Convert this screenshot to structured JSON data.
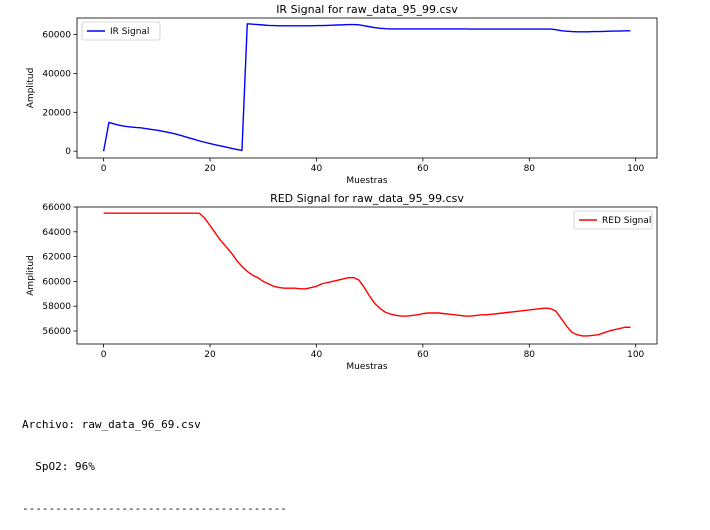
{
  "chart_data": [
    {
      "type": "line",
      "title": "IR Signal for raw_data_95_99.csv",
      "xlabel": "Muestras",
      "ylabel": "Amplitud",
      "xlim": [
        -5,
        104
      ],
      "ylim": [
        -3500,
        68500
      ],
      "xticks": [
        0,
        20,
        40,
        60,
        80,
        100
      ],
      "yticks": [
        0,
        20000,
        40000,
        60000
      ],
      "legend": "top-left",
      "grid": false,
      "series": [
        {
          "name": "IR Signal",
          "color": "#0000ff",
          "x": [
            0,
            1,
            2,
            3,
            4,
            5,
            6,
            7,
            8,
            9,
            10,
            11,
            12,
            13,
            14,
            15,
            16,
            17,
            18,
            19,
            20,
            21,
            22,
            23,
            24,
            25,
            26,
            27,
            28,
            29,
            30,
            31,
            32,
            33,
            34,
            35,
            36,
            37,
            38,
            39,
            40,
            41,
            42,
            43,
            44,
            45,
            46,
            47,
            48,
            49,
            50,
            51,
            52,
            53,
            54,
            55,
            56,
            57,
            58,
            59,
            60,
            61,
            62,
            63,
            64,
            65,
            66,
            67,
            68,
            69,
            70,
            71,
            72,
            73,
            74,
            75,
            76,
            77,
            78,
            79,
            80,
            81,
            82,
            83,
            84,
            85,
            86,
            87,
            88,
            89,
            90,
            91,
            92,
            93,
            94,
            95,
            96,
            97,
            98,
            99
          ],
          "values": [
            0,
            14800,
            14000,
            13300,
            12800,
            12500,
            12200,
            12000,
            11600,
            11200,
            10800,
            10300,
            9800,
            9200,
            8500,
            7700,
            6900,
            6100,
            5300,
            4600,
            3900,
            3300,
            2700,
            2100,
            1500,
            900,
            400,
            65500,
            65300,
            65100,
            64900,
            64700,
            64600,
            64500,
            64500,
            64500,
            64500,
            64500,
            64500,
            64500,
            64600,
            64600,
            64700,
            64800,
            64900,
            65000,
            65100,
            65100,
            65000,
            64500,
            64000,
            63500,
            63200,
            63000,
            62900,
            62900,
            62900,
            62900,
            62900,
            62900,
            62900,
            62900,
            62900,
            62900,
            62900,
            62900,
            62900,
            62900,
            62900,
            62800,
            62800,
            62800,
            62800,
            62800,
            62800,
            62800,
            62800,
            62800,
            62800,
            62800,
            62800,
            62800,
            62800,
            62800,
            62800,
            62500,
            62000,
            61700,
            61500,
            61400,
            61400,
            61400,
            61500,
            61500,
            61600,
            61700,
            61800,
            61800,
            61900,
            61900
          ]
        }
      ]
    },
    {
      "type": "line",
      "title": "RED Signal for raw_data_95_99.csv",
      "xlabel": "Muestras",
      "ylabel": "Amplitud",
      "xlim": [
        -5,
        104
      ],
      "ylim": [
        54950,
        66000
      ],
      "xticks": [
        0,
        20,
        40,
        60,
        80,
        100
      ],
      "yticks": [
        56000,
        58000,
        60000,
        62000,
        64000,
        66000
      ],
      "legend": "top-right",
      "grid": false,
      "series": [
        {
          "name": "RED Signal",
          "color": "#ff0000",
          "x": [
            0,
            1,
            2,
            3,
            4,
            5,
            6,
            7,
            8,
            9,
            10,
            11,
            12,
            13,
            14,
            15,
            16,
            17,
            18,
            19,
            20,
            21,
            22,
            23,
            24,
            25,
            26,
            27,
            28,
            29,
            30,
            31,
            32,
            33,
            34,
            35,
            36,
            37,
            38,
            39,
            40,
            41,
            42,
            43,
            44,
            45,
            46,
            47,
            48,
            49,
            50,
            51,
            52,
            53,
            54,
            55,
            56,
            57,
            58,
            59,
            60,
            61,
            62,
            63,
            64,
            65,
            66,
            67,
            68,
            69,
            70,
            71,
            72,
            73,
            74,
            75,
            76,
            77,
            78,
            79,
            80,
            81,
            82,
            83,
            84,
            85,
            86,
            87,
            88,
            89,
            90,
            91,
            92,
            93,
            94,
            95,
            96,
            97,
            98,
            99
          ],
          "values": [
            65500,
            65500,
            65500,
            65500,
            65500,
            65500,
            65500,
            65500,
            65500,
            65500,
            65500,
            65500,
            65500,
            65500,
            65500,
            65500,
            65500,
            65500,
            65500,
            65100,
            64500,
            63900,
            63300,
            62800,
            62300,
            61700,
            61200,
            60800,
            60500,
            60300,
            60000,
            59800,
            59600,
            59500,
            59450,
            59450,
            59450,
            59400,
            59400,
            59500,
            59600,
            59800,
            59900,
            60000,
            60100,
            60200,
            60300,
            60300,
            60100,
            59500,
            58800,
            58200,
            57800,
            57500,
            57350,
            57250,
            57200,
            57200,
            57250,
            57300,
            57400,
            57450,
            57450,
            57450,
            57400,
            57350,
            57300,
            57250,
            57200,
            57200,
            57250,
            57300,
            57300,
            57350,
            57400,
            57450,
            57500,
            57550,
            57600,
            57650,
            57700,
            57750,
            57800,
            57850,
            57800,
            57600,
            57000,
            56400,
            55900,
            55700,
            55600,
            55600,
            55650,
            55700,
            55850,
            56000,
            56100,
            56200,
            56300,
            56300
          ]
        }
      ]
    }
  ],
  "output": {
    "line1": "Archivo: raw_data_96_69.csv",
    "line2": "  SpO2: 96%",
    "line3": "----------------------------------------"
  }
}
